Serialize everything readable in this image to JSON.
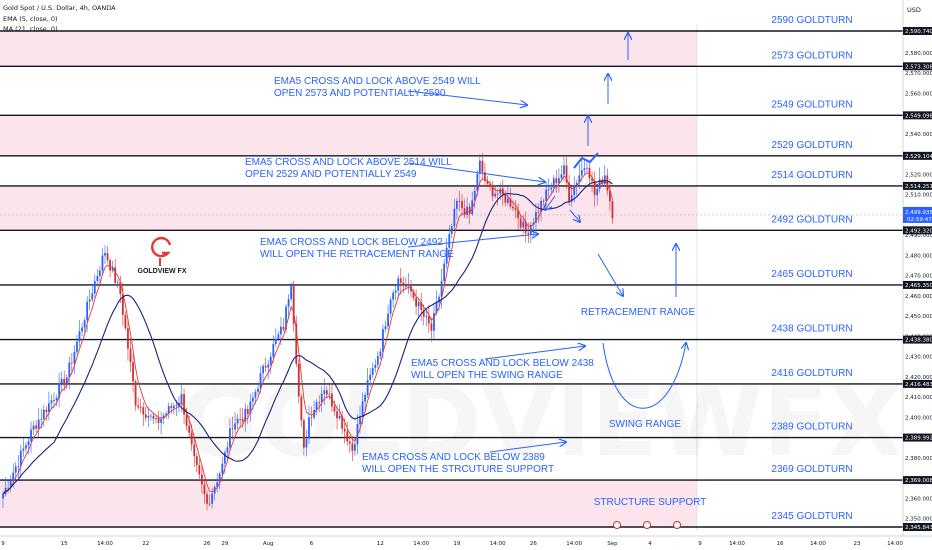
{
  "header": {
    "symbol_line": "Gold Spot / U.S. Dollar, 4h, OANDA",
    "ema_line": "EMA (5, close, 0)",
    "ma_line": "MA (21, close, 0)",
    "currency": "USD"
  },
  "watermark": "GOLDVIEWFX",
  "logo_text": "GOLDVIEW FX",
  "colors": {
    "band_fill": "#fce4ec",
    "level_line": "#131722",
    "accent": "#2962ff",
    "bull": "#2962ff",
    "bear": "#d32f2f",
    "ema": "#e53935",
    "ma": "#1a237e",
    "logo": "#e53935"
  },
  "chart_data": {
    "type": "candlestick",
    "ylim": [
      2345.843,
      2590.74
    ],
    "levels": [
      {
        "value": 2590.74,
        "label": "2590 GOLDTURN",
        "axis_label": "2,590.740"
      },
      {
        "value": 2573.308,
        "label": "2573 GOLDTURN",
        "axis_label": "2,573.308"
      },
      {
        "value": 2549.098,
        "label": "2549 GOLDTURN",
        "axis_label": "2,549.098"
      },
      {
        "value": 2529.104,
        "label": "2529 GOLDTURN",
        "axis_label": "2,529.104"
      },
      {
        "value": 2514.251,
        "label": "2514 GOLDTURN",
        "axis_label": "2,514.251"
      },
      {
        "value": 2492.32,
        "label": "2492 GOLDTURN",
        "axis_label": "2,492.320"
      },
      {
        "value": 2465.35,
        "label": "2465 GOLDTURN",
        "axis_label": "2,465.350"
      },
      {
        "value": 2438.38,
        "label": "2438 GOLDTURN",
        "axis_label": "2,438.380"
      },
      {
        "value": 2416.483,
        "label": "2416 GOLDTURN",
        "axis_label": "2,416.483"
      },
      {
        "value": 2389.992,
        "label": "2389 GOLDTURN",
        "axis_label": "2,389.992"
      },
      {
        "value": 2369.008,
        "label": "2369 GOLDTURN",
        "axis_label": "2,369.008"
      },
      {
        "value": 2345.843,
        "label": "2345 GOLDTURN",
        "axis_label": "2,345.843"
      }
    ],
    "current_price": {
      "value": 2499.935,
      "label": "2,499.935",
      "countdown": "02:59:47"
    },
    "price_ticks": [
      2580,
      2570,
      2560,
      2550,
      2540,
      2530,
      2520,
      2510,
      2490,
      2480,
      2470,
      2460,
      2450,
      2440,
      2430,
      2420,
      2410,
      2400,
      2380,
      2370,
      2360,
      2350
    ],
    "price_tick_labels": [
      "2,580.000",
      "2,570.000",
      "2,560.000",
      "2,550.000",
      "2,540.000",
      "2,530.000",
      "2,520.000",
      "2,510.000",
      "2,490.000",
      "2,480.000",
      "2,470.000",
      "2,460.000",
      "2,450.000",
      "2,440.000",
      "2,430.000",
      "2,420.000",
      "2,410.000",
      "2,400.000",
      "2,380.000",
      "2,370.000",
      "2,360.000",
      "2,350.000"
    ],
    "time_ticks": [
      {
        "label": "9",
        "bar": 0
      },
      {
        "label": "15",
        "bar": 24
      },
      {
        "label": "14:00",
        "bar": 40
      },
      {
        "label": "22",
        "bar": 56
      },
      {
        "label": "26",
        "bar": 80
      },
      {
        "label": "29",
        "bar": 87
      },
      {
        "label": "Aug",
        "bar": 104
      },
      {
        "label": "6",
        "bar": 121
      },
      {
        "label": "12",
        "bar": 148
      },
      {
        "label": "14:00",
        "bar": 164
      },
      {
        "label": "19",
        "bar": 178
      },
      {
        "label": "14:00",
        "bar": 194
      },
      {
        "label": "26",
        "bar": 208
      },
      {
        "label": "14:00",
        "bar": 224
      },
      {
        "label": "Sep",
        "bar": 239
      }
    ],
    "future_time_ticks": [
      "4",
      "9",
      "14:00",
      "16",
      "14:00",
      "23",
      "14:00"
    ],
    "key_points": [
      {
        "bar": 0,
        "price": 2362
      },
      {
        "bar": 12,
        "price": 2395
      },
      {
        "bar": 25,
        "price": 2420
      },
      {
        "bar": 36,
        "price": 2467
      },
      {
        "bar": 40,
        "price": 2482
      },
      {
        "bar": 46,
        "price": 2461
      },
      {
        "bar": 52,
        "price": 2408
      },
      {
        "bar": 60,
        "price": 2397
      },
      {
        "bar": 70,
        "price": 2410
      },
      {
        "bar": 75,
        "price": 2378
      },
      {
        "bar": 80,
        "price": 2357
      },
      {
        "bar": 86,
        "price": 2376
      },
      {
        "bar": 90,
        "price": 2397
      },
      {
        "bar": 96,
        "price": 2402
      },
      {
        "bar": 101,
        "price": 2420
      },
      {
        "bar": 106,
        "price": 2435
      },
      {
        "bar": 110,
        "price": 2445
      },
      {
        "bar": 113,
        "price": 2468
      },
      {
        "bar": 116,
        "price": 2410
      },
      {
        "bar": 118,
        "price": 2383
      },
      {
        "bar": 120,
        "price": 2400
      },
      {
        "bar": 126,
        "price": 2415
      },
      {
        "bar": 132,
        "price": 2400
      },
      {
        "bar": 137,
        "price": 2384
      },
      {
        "bar": 142,
        "price": 2412
      },
      {
        "bar": 148,
        "price": 2435
      },
      {
        "bar": 152,
        "price": 2460
      },
      {
        "bar": 155,
        "price": 2468
      },
      {
        "bar": 160,
        "price": 2462
      },
      {
        "bar": 164,
        "price": 2452
      },
      {
        "bar": 168,
        "price": 2443
      },
      {
        "bar": 171,
        "price": 2460
      },
      {
        "bar": 174,
        "price": 2482
      },
      {
        "bar": 178,
        "price": 2506
      },
      {
        "bar": 183,
        "price": 2500
      },
      {
        "bar": 187,
        "price": 2525
      },
      {
        "bar": 190,
        "price": 2513
      },
      {
        "bar": 195,
        "price": 2510
      },
      {
        "bar": 200,
        "price": 2505
      },
      {
        "bar": 205,
        "price": 2491
      },
      {
        "bar": 208,
        "price": 2498
      },
      {
        "bar": 212,
        "price": 2508
      },
      {
        "bar": 216,
        "price": 2516
      },
      {
        "bar": 220,
        "price": 2522
      },
      {
        "bar": 222,
        "price": 2509
      },
      {
        "bar": 226,
        "price": 2520
      },
      {
        "bar": 229,
        "price": 2526
      },
      {
        "bar": 232,
        "price": 2510
      },
      {
        "bar": 236,
        "price": 2520
      },
      {
        "bar": 239,
        "price": 2501
      }
    ]
  },
  "annotations": [
    {
      "id": "a2549",
      "lines": [
        "EMA5 CROSS AND LOCK ABOVE 2549 WILL",
        "OPEN 2573 AND POTENTIALLY 2590"
      ]
    },
    {
      "id": "a2514",
      "lines": [
        "EMA5 CROSS AND LOCK ABOVE 2514 WILL",
        "OPEN 2529 AND POTENTIALLY 2549"
      ]
    },
    {
      "id": "a2492",
      "lines": [
        "EMA5 CROSS AND LOCK BELOW 2492",
        "WILL OPEN THE RETRACEMENT RANGE"
      ]
    },
    {
      "id": "a2438",
      "lines": [
        "EMA5 CROSS AND LOCK BELOW 2438",
        "WILL OPEN THE SWING RANGE"
      ]
    },
    {
      "id": "a2389",
      "lines": [
        "EMA5 CROSS AND LOCK BELOW 2389",
        "WILL OPEN THE STRCUTURE SUPPORT"
      ]
    }
  ],
  "range_labels": {
    "retracement": "RETRACEMENT RANGE",
    "swing": "SWING RANGE",
    "structure": "STRUCTURE SUPPORT"
  }
}
